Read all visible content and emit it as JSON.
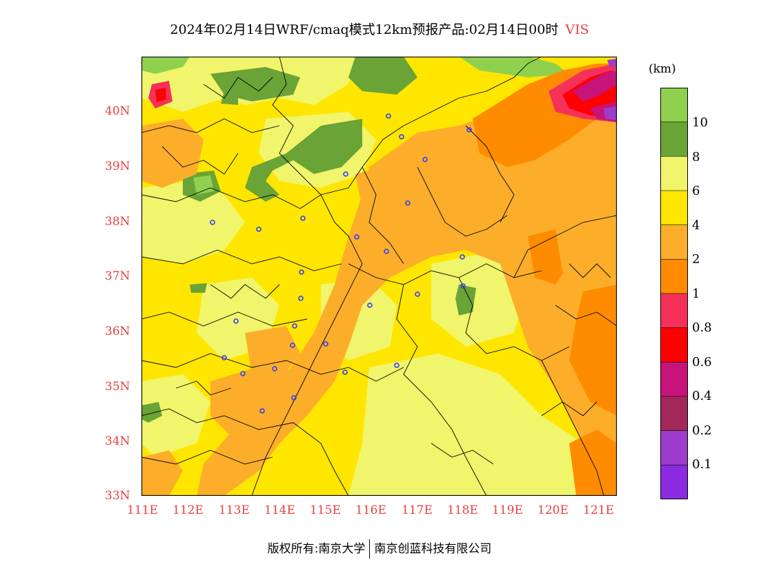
{
  "title": {
    "main": "2024年02月14日WRF/cmaq模式12km预报产品:02月14日00时",
    "variable": "VIS"
  },
  "map": {
    "lon_labels": [
      "111E",
      "112E",
      "113E",
      "114E",
      "115E",
      "116E",
      "117E",
      "118E",
      "119E",
      "120E",
      "121E"
    ],
    "lat_labels": [
      "40N",
      "39N",
      "38N",
      "37N",
      "36N",
      "35N",
      "34N",
      "33N"
    ],
    "colors": {
      "greater_than_10": "#8fd14f",
      "8_to_10": "#6aa336",
      "6_to_8": "#f0f56b",
      "4_to_6": "#ffe600",
      "2_to_4": "#fcae2a",
      "1_to_2": "#ff8c00",
      "0_8_to_1": "#f5315a",
      "0_6_to_0_8": "#ff0000",
      "0_4_to_0_6": "#c8137a",
      "0_2_to_0_4": "#a3285a",
      "0_1_to_0_2": "#9b3ccc",
      "below_0_1": "#8a2be2"
    },
    "station_marker_color": "#2a3cff"
  },
  "legend": {
    "unit": "(km)",
    "labels": [
      "10",
      "8",
      "6",
      "4",
      "2",
      "1",
      "0.8",
      "0.6",
      "0.4",
      "0.2",
      "0.1"
    ],
    "colors": [
      "#8fd14f",
      "#6aa336",
      "#f0f56b",
      "#ffe600",
      "#fcae2a",
      "#ff8c00",
      "#f5315a",
      "#ff0000",
      "#c8137a",
      "#a3285a",
      "#9b3ccc",
      "#8a2be2"
    ]
  },
  "footer": {
    "copyright": "版权所有:南京大学",
    "company": "南京创蓝科技有限公司"
  }
}
